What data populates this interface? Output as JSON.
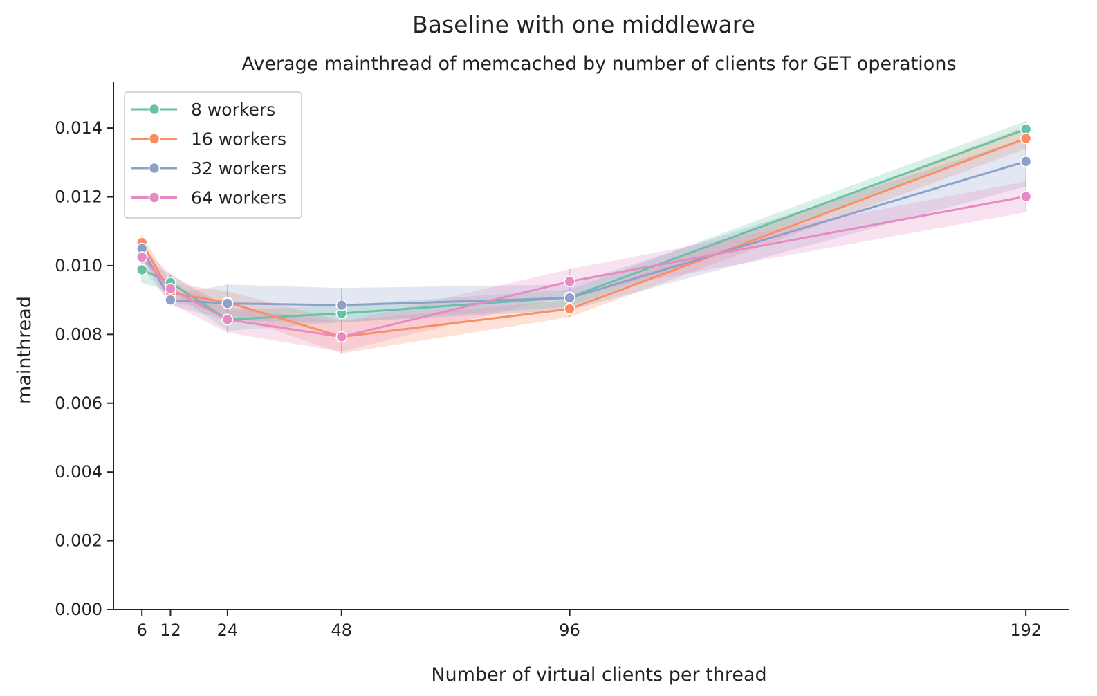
{
  "chart_data": {
    "type": "line",
    "suptitle": "Baseline with one middleware",
    "title": "Average mainthread of memcached by number of clients for GET operations",
    "xlabel": "Number of virtual clients per thread",
    "ylabel": "mainthread",
    "x": [
      6,
      12,
      24,
      48,
      96,
      192
    ],
    "xticks": [
      "6",
      "12",
      "24",
      "48",
      "96",
      "192"
    ],
    "xlim": [
      0,
      201
    ],
    "ylim": [
      0,
      0.01535
    ],
    "yticks": [
      "0.000",
      "0.002",
      "0.004",
      "0.006",
      "0.008",
      "0.010",
      "0.012",
      "0.014"
    ],
    "legend_position": "top-left",
    "grid": false,
    "series": [
      {
        "name": "8 workers",
        "color": "#66c2a5",
        "values": [
          0.00988,
          0.00951,
          0.00843,
          0.00861,
          0.00908,
          0.01397
        ],
        "ci_low": [
          0.0095,
          0.00925,
          0.0081,
          0.00835,
          0.0088,
          0.0137
        ],
        "ci_high": [
          0.0102,
          0.00975,
          0.0087,
          0.00885,
          0.0093,
          0.0142
        ]
      },
      {
        "name": "16 workers",
        "color": "#fc8d62",
        "values": [
          0.01067,
          0.00921,
          0.00893,
          0.00793,
          0.00874,
          0.0137
        ],
        "ci_low": [
          0.0104,
          0.00895,
          0.0086,
          0.00745,
          0.0085,
          0.0134
        ],
        "ci_high": [
          0.0109,
          0.0095,
          0.00925,
          0.0084,
          0.009,
          0.01405
        ]
      },
      {
        "name": "32 workers",
        "color": "#8da0cb",
        "values": [
          0.0105,
          0.009,
          0.0089,
          0.00885,
          0.00906,
          0.01303
        ],
        "ci_low": [
          0.0102,
          0.00885,
          0.0084,
          0.00835,
          0.0087,
          0.0123
        ],
        "ci_high": [
          0.01075,
          0.00915,
          0.00945,
          0.00935,
          0.00945,
          0.0137
        ]
      },
      {
        "name": "64 workers",
        "color": "#e78ac3",
        "values": [
          0.01025,
          0.00933,
          0.00843,
          0.00793,
          0.00954,
          0.01201
        ],
        "ci_low": [
          0.00995,
          0.0089,
          0.00805,
          0.0075,
          0.00915,
          0.01155
        ],
        "ci_high": [
          0.01055,
          0.00975,
          0.0088,
          0.00835,
          0.0099,
          0.01245
        ]
      }
    ]
  }
}
